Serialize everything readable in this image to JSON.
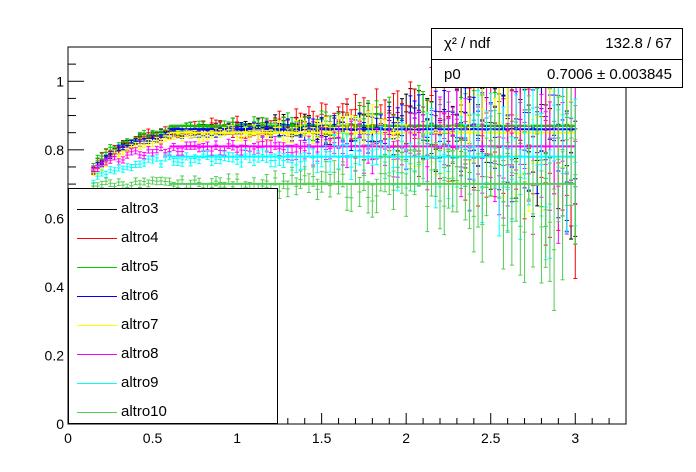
{
  "chart_data": {
    "type": "scatter",
    "title": "",
    "xlabel": "",
    "ylabel": "",
    "xlim": [
      0,
      3.3
    ],
    "ylim": [
      0,
      1.1
    ],
    "x_ticks": [
      "0",
      "0.5",
      "1",
      "1.5",
      "2",
      "2.5",
      "3"
    ],
    "y_ticks": [
      "0",
      "0.2",
      "0.4",
      "0.6",
      "0.8",
      "1"
    ],
    "x_range": [
      0.15,
      3.0
    ],
    "bin_width": 0.025,
    "stats": [
      {
        "name": "χ² / ndf",
        "value": "132.8 / 67"
      },
      {
        "name": "p0",
        "value": "0.7006 ± 0.003845"
      }
    ],
    "legend_position": "bottom-left",
    "series": [
      {
        "name": "altro3",
        "color": "#000000",
        "plateau": 0.87,
        "start": 0.74,
        "err_scale": 1.0
      },
      {
        "name": "altro4",
        "color": "#ff0000",
        "plateau": 0.87,
        "start": 0.75,
        "err_scale": 1.3
      },
      {
        "name": "altro5",
        "color": "#00cc00",
        "plateau": 0.87,
        "start": 0.76,
        "err_scale": 1.0
      },
      {
        "name": "altro6",
        "color": "#0000ff",
        "plateau": 0.86,
        "start": 0.74,
        "err_scale": 0.9
      },
      {
        "name": "altro7",
        "color": "#ffff00",
        "plateau": 0.85,
        "start": 0.73,
        "err_scale": 1.0
      },
      {
        "name": "altro8",
        "color": "#ff00ff",
        "plateau": 0.81,
        "start": 0.74,
        "err_scale": 1.1
      },
      {
        "name": "altro9",
        "color": "#00ffff",
        "plateau": 0.78,
        "start": 0.71,
        "err_scale": 1.1
      },
      {
        "name": "altro10",
        "color": "#55cc55",
        "plateau": 0.7006,
        "start": 0.7,
        "err_scale": 1.2
      }
    ]
  }
}
